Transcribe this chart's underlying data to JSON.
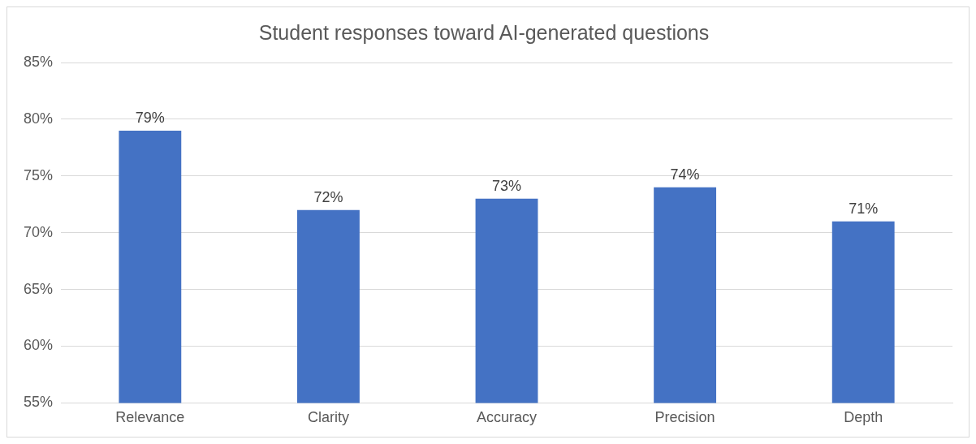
{
  "chart_data": {
    "type": "bar",
    "title": "Student responses toward AI-generated questions",
    "categories": [
      "Relevance",
      "Clarity",
      "Accuracy",
      "Precision",
      "Depth"
    ],
    "values": [
      79,
      72,
      73,
      74,
      71
    ],
    "value_labels": [
      "79%",
      "72%",
      "73%",
      "74%",
      "71%"
    ],
    "color": "#4472c4",
    "ylim": [
      55,
      85
    ],
    "yticks": [
      {
        "value": 55,
        "label": "55%"
      },
      {
        "value": 60,
        "label": "60%"
      },
      {
        "value": 65,
        "label": "65%"
      },
      {
        "value": 70,
        "label": "70%"
      },
      {
        "value": 75,
        "label": "75%"
      },
      {
        "value": 80,
        "label": "80%"
      },
      {
        "value": 85,
        "label": "85%"
      }
    ],
    "grid": "y",
    "legend": false
  }
}
